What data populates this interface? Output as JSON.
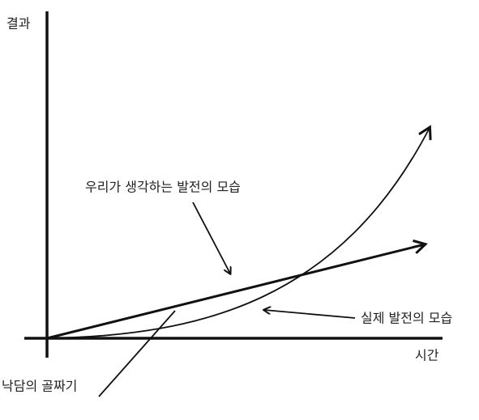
{
  "axes": {
    "y_label": "결과",
    "x_label": "시간"
  },
  "annotations": {
    "expected": "우리가 생각하는 발전의 모습",
    "actual": "실제 발전의 모습",
    "valley": "낙담의 골짜기"
  }
}
